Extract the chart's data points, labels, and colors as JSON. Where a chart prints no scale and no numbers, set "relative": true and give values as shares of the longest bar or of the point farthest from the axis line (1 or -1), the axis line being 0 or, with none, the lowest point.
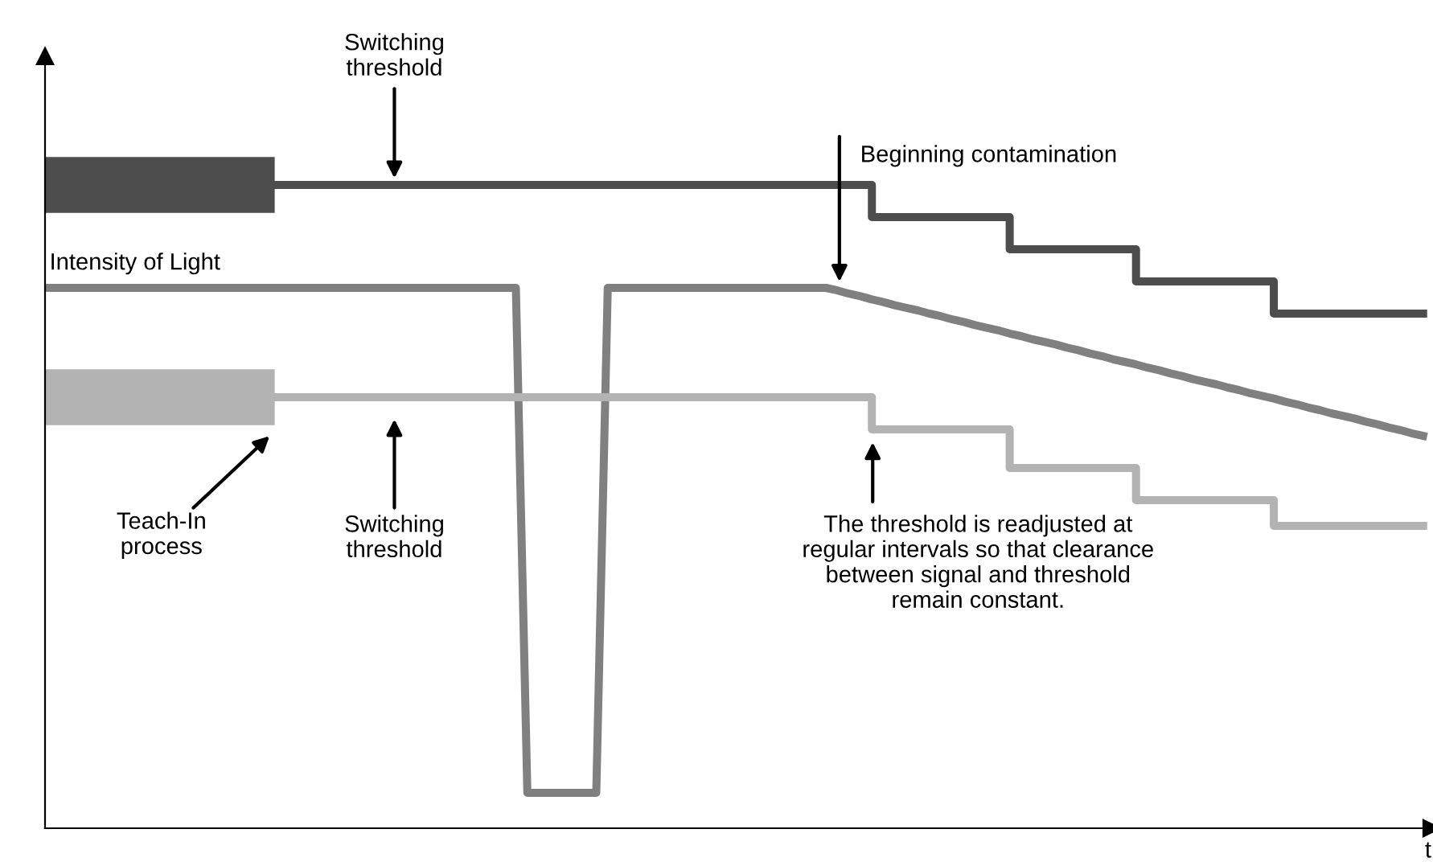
{
  "chart_data": {
    "type": "line",
    "relative": true,
    "xlabel": "t",
    "categories": [
      null,
      null,
      null,
      null,
      null,
      null,
      null,
      null,
      null,
      null,
      null,
      null,
      null,
      null,
      null,
      null,
      null,
      null,
      null,
      null,
      null,
      null,
      null,
      null,
      null,
      null,
      null,
      null,
      null,
      null,
      null,
      null,
      null,
      null,
      null,
      null,
      null,
      null,
      null,
      null,
      null,
      null,
      null,
      null,
      null,
      null,
      null,
      null,
      null,
      null,
      null,
      null,
      null,
      null,
      null,
      null,
      null,
      null,
      null,
      null,
      null,
      null,
      null,
      null,
      null,
      null,
      null,
      null,
      null,
      null,
      null,
      null,
      null,
      null,
      null,
      null,
      null,
      null,
      null,
      null,
      null,
      null,
      null,
      null,
      null,
      null,
      null,
      null,
      null,
      null,
      null,
      null,
      null,
      null,
      null,
      null,
      null,
      null,
      null,
      null,
      null,
      null,
      null,
      null,
      null,
      null,
      null,
      null,
      null,
      null,
      null,
      null,
      null,
      null,
      null,
      null,
      null,
      null,
      null,
      null,
      null
    ],
    "series": [
      {
        "type": "step",
        "color": "#4d4d4d",
        "values": [
          1.0,
          1.0,
          1.0,
          1.0,
          1.0,
          1.0,
          1.0,
          1.0,
          1.0,
          1.0,
          1.0,
          1.0,
          1.0,
          1.0,
          1.0,
          1.0,
          1.0,
          1.0,
          1.0,
          1.0,
          1.0,
          1.0,
          1.0,
          1.0,
          1.0,
          1.0,
          1.0,
          1.0,
          1.0,
          1.0,
          1.0,
          1.0,
          1.0,
          1.0,
          1.0,
          1.0,
          1.0,
          1.0,
          1.0,
          1.0,
          1.0,
          1.0,
          1.0,
          1.0,
          1.0,
          1.0,
          1.0,
          1.0,
          1.0,
          1.0,
          1.0,
          1.0,
          1.0,
          1.0,
          1.0,
          1.0,
          1.0,
          1.0,
          1.0,
          1.0,
          1.0,
          1.0,
          1.0,
          1.0,
          1.0,
          1.0,
          1.0,
          1.0,
          1.0,
          1.0,
          1.0,
          1.0,
          0.95,
          0.95,
          0.95,
          0.95,
          0.95,
          0.95,
          0.95,
          0.95,
          0.95,
          0.95,
          0.95,
          0.95,
          0.9,
          0.9,
          0.9,
          0.9,
          0.9,
          0.9,
          0.9,
          0.9,
          0.9,
          0.9,
          0.9,
          0.85,
          0.85,
          0.85,
          0.85,
          0.85,
          0.85,
          0.85,
          0.85,
          0.85,
          0.85,
          0.85,
          0.85,
          0.8,
          0.8,
          0.8,
          0.8,
          0.8,
          0.8,
          0.8,
          0.8,
          0.8,
          0.8,
          0.8,
          0.8,
          0.8,
          0.8
        ]
      },
      {
        "name": "Intensity of Light",
        "color": "#808080",
        "values": [
          0.84,
          0.84,
          0.84,
          0.84,
          0.84,
          0.84,
          0.84,
          0.84,
          0.84,
          0.84,
          0.84,
          0.84,
          0.84,
          0.84,
          0.84,
          0.84,
          0.84,
          0.84,
          0.84,
          0.84,
          0.84,
          0.84,
          0.84,
          0.84,
          0.84,
          0.84,
          0.84,
          0.84,
          0.84,
          0.84,
          0.84,
          0.84,
          0.84,
          0.84,
          0.84,
          0.84,
          0.84,
          0.84,
          0.84,
          0.84,
          0.84,
          0.84,
          0.055,
          0.055,
          0.055,
          0.055,
          0.055,
          0.055,
          0.055,
          0.84,
          0.84,
          0.84,
          0.84,
          0.84,
          0.84,
          0.84,
          0.84,
          0.84,
          0.84,
          0.84,
          0.84,
          0.84,
          0.84,
          0.84,
          0.84,
          0.84,
          0.84,
          0.84,
          0.84,
          0.836,
          0.831,
          0.827,
          0.822,
          0.818,
          0.813,
          0.809,
          0.805,
          0.8,
          0.796,
          0.791,
          0.787,
          0.782,
          0.778,
          0.774,
          0.769,
          0.765,
          0.76,
          0.756,
          0.752,
          0.747,
          0.743,
          0.738,
          0.734,
          0.729,
          0.725,
          0.721,
          0.716,
          0.712,
          0.707,
          0.703,
          0.698,
          0.694,
          0.69,
          0.685,
          0.681,
          0.676,
          0.672,
          0.668,
          0.663,
          0.659,
          0.654,
          0.65,
          0.645,
          0.641,
          0.637,
          0.632,
          0.628,
          0.623,
          0.619,
          0.614,
          0.61
        ]
      },
      {
        "type": "step",
        "color": "#b3b3b3",
        "values": [
          0.67,
          0.67,
          0.67,
          0.67,
          0.67,
          0.67,
          0.67,
          0.67,
          0.67,
          0.67,
          0.67,
          0.67,
          0.67,
          0.67,
          0.67,
          0.67,
          0.67,
          0.67,
          0.67,
          0.67,
          0.67,
          0.67,
          0.67,
          0.67,
          0.67,
          0.67,
          0.67,
          0.67,
          0.67,
          0.67,
          0.67,
          0.67,
          0.67,
          0.67,
          0.67,
          0.67,
          0.67,
          0.67,
          0.67,
          0.67,
          0.67,
          0.67,
          0.67,
          0.67,
          0.67,
          0.67,
          0.67,
          0.67,
          0.67,
          0.67,
          0.67,
          0.67,
          0.67,
          0.67,
          0.67,
          0.67,
          0.67,
          0.67,
          0.67,
          0.67,
          0.67,
          0.67,
          0.67,
          0.67,
          0.67,
          0.67,
          0.67,
          0.67,
          0.67,
          0.67,
          0.67,
          0.67,
          0.62,
          0.62,
          0.62,
          0.62,
          0.62,
          0.62,
          0.62,
          0.62,
          0.62,
          0.62,
          0.62,
          0.62,
          0.56,
          0.56,
          0.56,
          0.56,
          0.56,
          0.56,
          0.56,
          0.56,
          0.56,
          0.56,
          0.56,
          0.51,
          0.51,
          0.51,
          0.51,
          0.51,
          0.51,
          0.51,
          0.51,
          0.51,
          0.51,
          0.51,
          0.51,
          0.47,
          0.47,
          0.47,
          0.47,
          0.47,
          0.47,
          0.47,
          0.47,
          0.47,
          0.47,
          0.47,
          0.47,
          0.47,
          0.47
        ]
      }
    ],
    "annotations": [
      "Switching\nthreshold",
      "Beginning contamination",
      "Teach-In\nprocess",
      "Switching\nthreshold",
      "The threshold is readjusted at\nregular intervals so that clearance\nbetween signal and threshold\nremain constant."
    ]
  }
}
